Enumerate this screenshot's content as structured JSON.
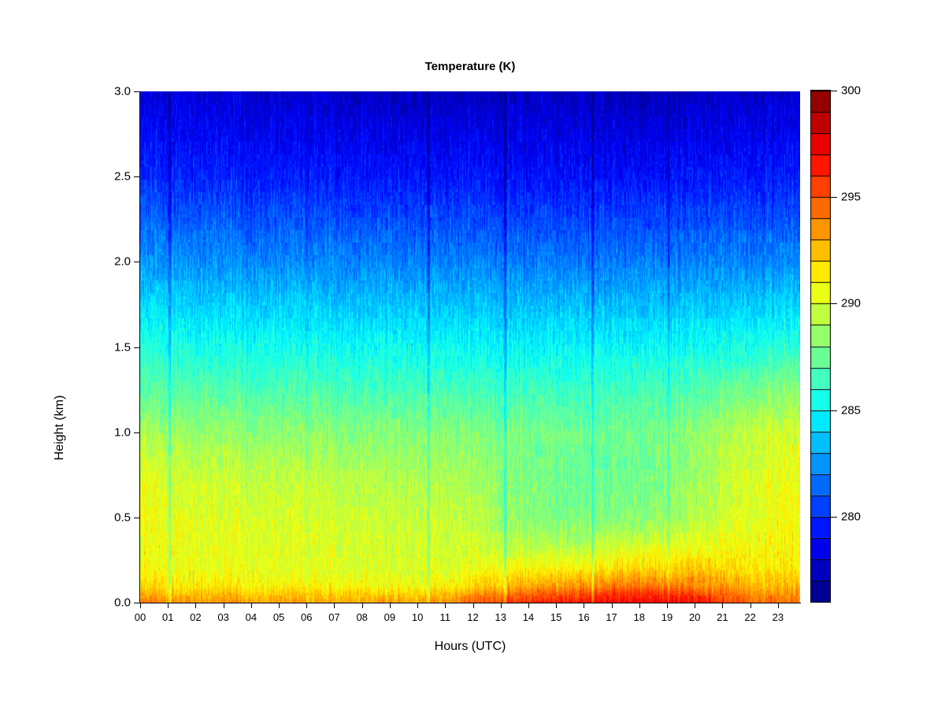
{
  "chart": {
    "title": "Temperature (K)",
    "xlabel": "Hours (UTC)",
    "ylabel": "Height (km)"
  },
  "chart_data": {
    "type": "heatmap",
    "title": "Temperature (K)",
    "xlabel": "Hours (UTC)",
    "ylabel": "Height (km)",
    "value_unit": "K",
    "x_range": [
      0,
      23.8
    ],
    "y_range": [
      0,
      3
    ],
    "x_ticks": [
      0,
      1,
      2,
      3,
      4,
      5,
      6,
      7,
      8,
      9,
      10,
      11,
      12,
      13,
      14,
      15,
      16,
      17,
      18,
      19,
      20,
      21,
      22,
      23
    ],
    "x_tick_labels": [
      "00",
      "01",
      "02",
      "03",
      "04",
      "05",
      "06",
      "07",
      "08",
      "09",
      "10",
      "11",
      "12",
      "13",
      "14",
      "15",
      "16",
      "17",
      "18",
      "19",
      "20",
      "21",
      "22",
      "23"
    ],
    "y_ticks": [
      0,
      0.5,
      1,
      1.5,
      2,
      2.5,
      3
    ],
    "y_tick_labels": [
      "0.0",
      "0.5",
      "1.0",
      "1.5",
      "2.0",
      "2.5",
      "3.0"
    ],
    "grid_lines": false,
    "background": "#ffffff",
    "axis_color": "#000000",
    "colorbar": {
      "position": "right",
      "colormap": "jet",
      "min": 276,
      "max": 300,
      "levels": 24,
      "ticks": [
        280,
        285,
        290,
        295,
        300
      ],
      "tick_labels": [
        "280",
        "285",
        "290",
        "295",
        "300"
      ]
    },
    "grid": {
      "hours": [
        0,
        1,
        2,
        3,
        4,
        5,
        6,
        7,
        8,
        9,
        10,
        11,
        12,
        13,
        14,
        15,
        16,
        17,
        18,
        19,
        20,
        21,
        22,
        23
      ],
      "heights_km": [
        0,
        0.05,
        0.1,
        0.2,
        0.35,
        0.5,
        0.75,
        1.0,
        1.25,
        1.5,
        2.0,
        2.5,
        3.0
      ],
      "temperature_k": [
        [
          294.0,
          293.0,
          291.9,
          291.0,
          290.8,
          290.8,
          290.5,
          289.0,
          287.2,
          285.8,
          282.6,
          279.9,
          278.2
        ],
        [
          293.6,
          292.6,
          291.5,
          290.7,
          290.5,
          290.4,
          289.9,
          288.7,
          287.0,
          285.6,
          282.5,
          279.8,
          278.2
        ],
        [
          293.5,
          292.5,
          291.4,
          290.6,
          290.4,
          290.3,
          289.8,
          288.6,
          287.0,
          285.5,
          282.4,
          279.7,
          278.1
        ],
        [
          293.5,
          292.5,
          291.3,
          290.6,
          290.4,
          290.2,
          289.7,
          288.5,
          286.9,
          285.5,
          282.4,
          279.7,
          278.1
        ],
        [
          293.4,
          292.4,
          291.2,
          290.5,
          290.3,
          290.2,
          289.6,
          288.5,
          286.9,
          285.4,
          282.3,
          279.6,
          278.0
        ],
        [
          293.4,
          292.3,
          291.1,
          290.4,
          290.3,
          290.1,
          289.5,
          288.4,
          286.8,
          285.4,
          282.3,
          279.6,
          277.9
        ],
        [
          293.3,
          292.3,
          291.1,
          290.4,
          290.2,
          290.0,
          289.4,
          288.3,
          286.8,
          285.3,
          282.2,
          279.5,
          277.9
        ],
        [
          293.3,
          292.2,
          291.0,
          290.3,
          290.1,
          289.9,
          289.3,
          288.3,
          286.7,
          285.3,
          282.2,
          279.5,
          277.8
        ],
        [
          293.2,
          292.2,
          291.0,
          290.3,
          290.0,
          289.8,
          289.2,
          288.2,
          286.7,
          285.2,
          282.1,
          279.5,
          277.7
        ],
        [
          293.2,
          292.1,
          290.9,
          290.2,
          290.0,
          289.7,
          289.1,
          288.2,
          286.6,
          285.2,
          282.1,
          279.4,
          277.5
        ],
        [
          293.3,
          292.2,
          290.9,
          290.2,
          289.9,
          289.7,
          289.0,
          288.1,
          286.6,
          285.1,
          282.0,
          279.4,
          277.4
        ],
        [
          293.5,
          292.4,
          291.0,
          290.2,
          289.9,
          289.6,
          289.0,
          288.1,
          286.5,
          285.1,
          282.0,
          279.4,
          277.4
        ],
        [
          294.5,
          293.3,
          291.8,
          290.5,
          289.7,
          289.4,
          288.8,
          288.0,
          286.5,
          285.0,
          282.0,
          279.3,
          277.5
        ],
        [
          295.5,
          294.2,
          292.5,
          290.8,
          289.4,
          288.7,
          288.3,
          287.9,
          286.5,
          285.0,
          281.9,
          279.3,
          277.5
        ],
        [
          296.0,
          294.8,
          293.0,
          291.0,
          289.2,
          288.2,
          287.8,
          287.8,
          286.4,
          285.0,
          281.9,
          279.3,
          277.6
        ],
        [
          296.3,
          295.0,
          293.2,
          291.1,
          289.0,
          287.9,
          287.6,
          287.7,
          286.4,
          285.0,
          281.9,
          279.2,
          277.6
        ],
        [
          296.6,
          295.3,
          293.5,
          291.3,
          289.1,
          287.9,
          287.4,
          287.6,
          286.4,
          285.0,
          281.9,
          279.2,
          277.6
        ],
        [
          297.0,
          295.8,
          294.0,
          291.6,
          289.5,
          288.1,
          287.5,
          287.6,
          286.4,
          285.0,
          281.9,
          279.2,
          277.4
        ],
        [
          297.2,
          296.0,
          294.2,
          291.9,
          289.8,
          288.3,
          287.7,
          287.7,
          286.5,
          285.1,
          282.0,
          279.3,
          277.3
        ],
        [
          297.1,
          295.9,
          294.1,
          292.0,
          290.0,
          288.6,
          288.0,
          287.9,
          286.6,
          285.1,
          282.0,
          279.3,
          277.3
        ],
        [
          296.8,
          295.6,
          293.9,
          292.0,
          290.3,
          289.1,
          288.5,
          288.3,
          286.8,
          285.2,
          282.0,
          279.3,
          277.6
        ],
        [
          295.6,
          294.7,
          293.3,
          291.9,
          290.6,
          289.8,
          289.4,
          289.0,
          287.2,
          285.4,
          282.1,
          279.4,
          277.7
        ],
        [
          294.6,
          293.9,
          292.8,
          291.6,
          290.9,
          290.5,
          290.2,
          289.7,
          287.8,
          285.7,
          282.2,
          279.5,
          277.8
        ],
        [
          294.3,
          293.6,
          292.6,
          291.5,
          291.0,
          290.7,
          290.5,
          290.0,
          288.2,
          285.9,
          282.3,
          279.6,
          277.9
        ]
      ]
    },
    "texture": {
      "column_noise_k": 0.55,
      "block_noise_k": 0.8,
      "fine_noise_k": 0.35,
      "cold_streak_hours": [
        1.05,
        10.4,
        13.15,
        16.3,
        19.05
      ],
      "cold_streak_delta_k": -1.9
    }
  }
}
